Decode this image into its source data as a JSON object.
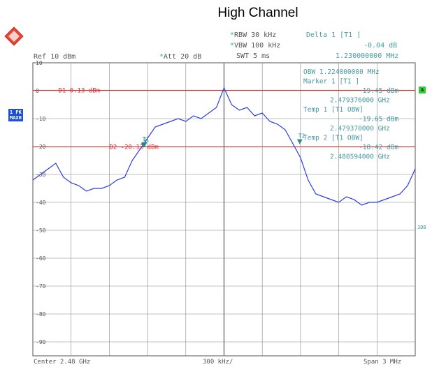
{
  "title": "High Channel",
  "header": {
    "rbw": "RBW 30 kHz",
    "vbw": "VBW 100 kHz",
    "swt": "SWT 5 ms",
    "ref": "Ref  10 dBm",
    "att": "Att  20 dB",
    "delta_label": "Delta 1 [T1 ]",
    "delta_value": "-0.04 dB",
    "delta_freq": "1.230000000 MHz"
  },
  "markers_panel": {
    "obw": "OBW  1.224000000 MHz",
    "marker1": "Marker 1 [T1 ]",
    "marker1_level": "-19.45 dBm",
    "marker1_freq": "2.479376000 GHz",
    "temp1": "Temp 1 [T1 OBW]",
    "temp1_level": "-19.65 dBm",
    "temp1_freq": "2.479370000 GHz",
    "temp2": "Temp 2 [T1 OBW]",
    "temp2_level": "-18.42 dBm",
    "temp2_freq": "2.480594000 GHz"
  },
  "side_labels": {
    "trace_mode_1": "1 PK",
    "trace_mode_2": "MAXH",
    "a_badge": "A",
    "sgl_label": "3DB"
  },
  "footer": {
    "center": "Center 2.48 GHz",
    "div": "300 kHz/",
    "span": "Span 3 MHz"
  },
  "display_lines": {
    "d1": "D1  0.13 dBm",
    "d2": "D2 -20.13 dBm"
  },
  "marker_tags": {
    "m1": "1",
    "t1": "T1",
    "t2": "T2"
  },
  "colors": {
    "trace": "#2a3fe0",
    "limit": "#e03030",
    "grid": "#888888",
    "marker": "#2a8a8a",
    "panel_text": "#4a9aa0"
  },
  "chart_data": {
    "type": "line",
    "title": "High Channel",
    "xlabel": "",
    "ylabel": "",
    "x_range": [
      2.4785,
      2.4815
    ],
    "ylim": [
      -95,
      10
    ],
    "y_ticks": [
      10,
      0,
      -10,
      -20,
      -30,
      -40,
      -50,
      -60,
      -70,
      -80,
      -90
    ],
    "ref_lines": [
      0.13,
      -20.13
    ],
    "series": [
      {
        "x": [
          2.4785,
          2.47856,
          2.47862,
          2.47868,
          2.47874,
          2.4788,
          2.47886,
          2.47892,
          2.47898,
          2.47904,
          2.4791,
          2.47916,
          2.47922,
          2.47928,
          2.47934,
          2.4794,
          2.47946,
          2.47952,
          2.47958,
          2.47964,
          2.4797,
          2.47976,
          2.47982,
          2.47988,
          2.47994,
          2.48,
          2.48006,
          2.48012,
          2.48018,
          2.48024,
          2.4803,
          2.48036,
          2.48042,
          2.48048,
          2.48054,
          2.4806,
          2.48066,
          2.48072,
          2.48078,
          2.48084,
          2.4809,
          2.48096,
          2.48102,
          2.48108,
          2.48114,
          2.4812,
          2.48126,
          2.48132,
          2.48138,
          2.48144,
          2.4815
        ],
        "values": [
          -32,
          -30,
          -28,
          -26,
          -31,
          -33,
          -34,
          -36,
          -35,
          -35,
          -34,
          -32,
          -31,
          -25,
          -21,
          -17,
          -13,
          -12,
          -11,
          -10,
          -11,
          -9,
          -10,
          -8,
          -6,
          1,
          -5,
          -7,
          -6,
          -9,
          -8,
          -11,
          -12,
          -14,
          -19,
          -24,
          -32,
          -37,
          -38,
          -39,
          -40,
          -38,
          -39,
          -41,
          -40,
          -40,
          -39,
          -38,
          -37,
          -34,
          -28
        ]
      }
    ]
  }
}
